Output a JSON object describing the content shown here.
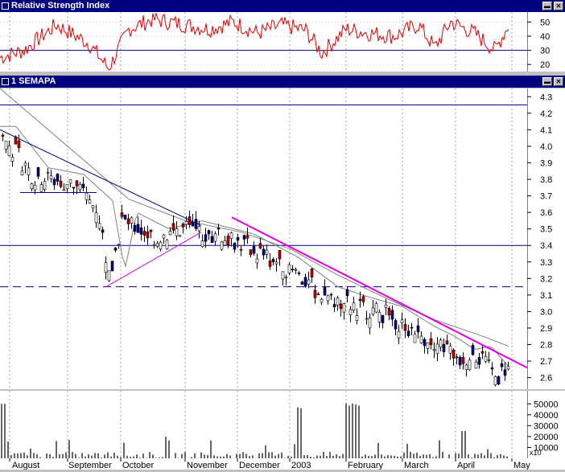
{
  "panes": {
    "rsi": {
      "title": "Relative Strength Index",
      "ticks": [
        20,
        30,
        40,
        50
      ],
      "ref_line": 30,
      "ylim": [
        15,
        57
      ]
    },
    "price": {
      "title": "1 SEMAPA",
      "ticks": [
        2.6,
        2.7,
        2.8,
        2.9,
        3.0,
        3.1,
        3.2,
        3.3,
        3.4,
        3.5,
        3.6,
        3.7,
        3.8,
        3.9,
        4.0,
        4.1,
        4.2,
        4.3
      ],
      "ylim": [
        2.53,
        4.35
      ]
    },
    "volume": {
      "ticks": [
        10000,
        20000,
        30000,
        40000,
        50000
      ],
      "multiplier": "x10",
      "ylim": [
        0,
        62000
      ]
    }
  },
  "x_axis": {
    "months": [
      "August",
      "September",
      "October",
      "November",
      "December",
      "2003",
      "February",
      "March",
      "April",
      "May"
    ]
  },
  "chart_data": {
    "type": "candlestick",
    "ticker": "1 SEMAPA",
    "time_range": [
      "2002-08",
      "2003-05"
    ],
    "horizontal_lines": [
      4.25,
      3.4,
      3.15
    ],
    "approx_close": [
      {
        "date": "2002-08-01",
        "value": 4.07
      },
      {
        "date": "2002-08-15",
        "value": 3.82
      },
      {
        "date": "2002-09-01",
        "value": 3.78
      },
      {
        "date": "2002-09-20",
        "value": 3.2
      },
      {
        "date": "2002-10-01",
        "value": 3.55
      },
      {
        "date": "2002-10-20",
        "value": 3.45
      },
      {
        "date": "2002-11-10",
        "value": 3.5
      },
      {
        "date": "2002-12-01",
        "value": 3.42
      },
      {
        "date": "2002-12-20",
        "value": 3.28
      },
      {
        "date": "2003-01-15",
        "value": 3.05
      },
      {
        "date": "2003-02-10",
        "value": 3.0
      },
      {
        "date": "2003-03-01",
        "value": 2.88
      },
      {
        "date": "2003-03-25",
        "value": 2.75
      },
      {
        "date": "2003-04-10",
        "value": 2.72
      },
      {
        "date": "2003-04-25",
        "value": 2.62
      },
      {
        "date": "2003-05-01",
        "value": 2.68
      }
    ]
  }
}
